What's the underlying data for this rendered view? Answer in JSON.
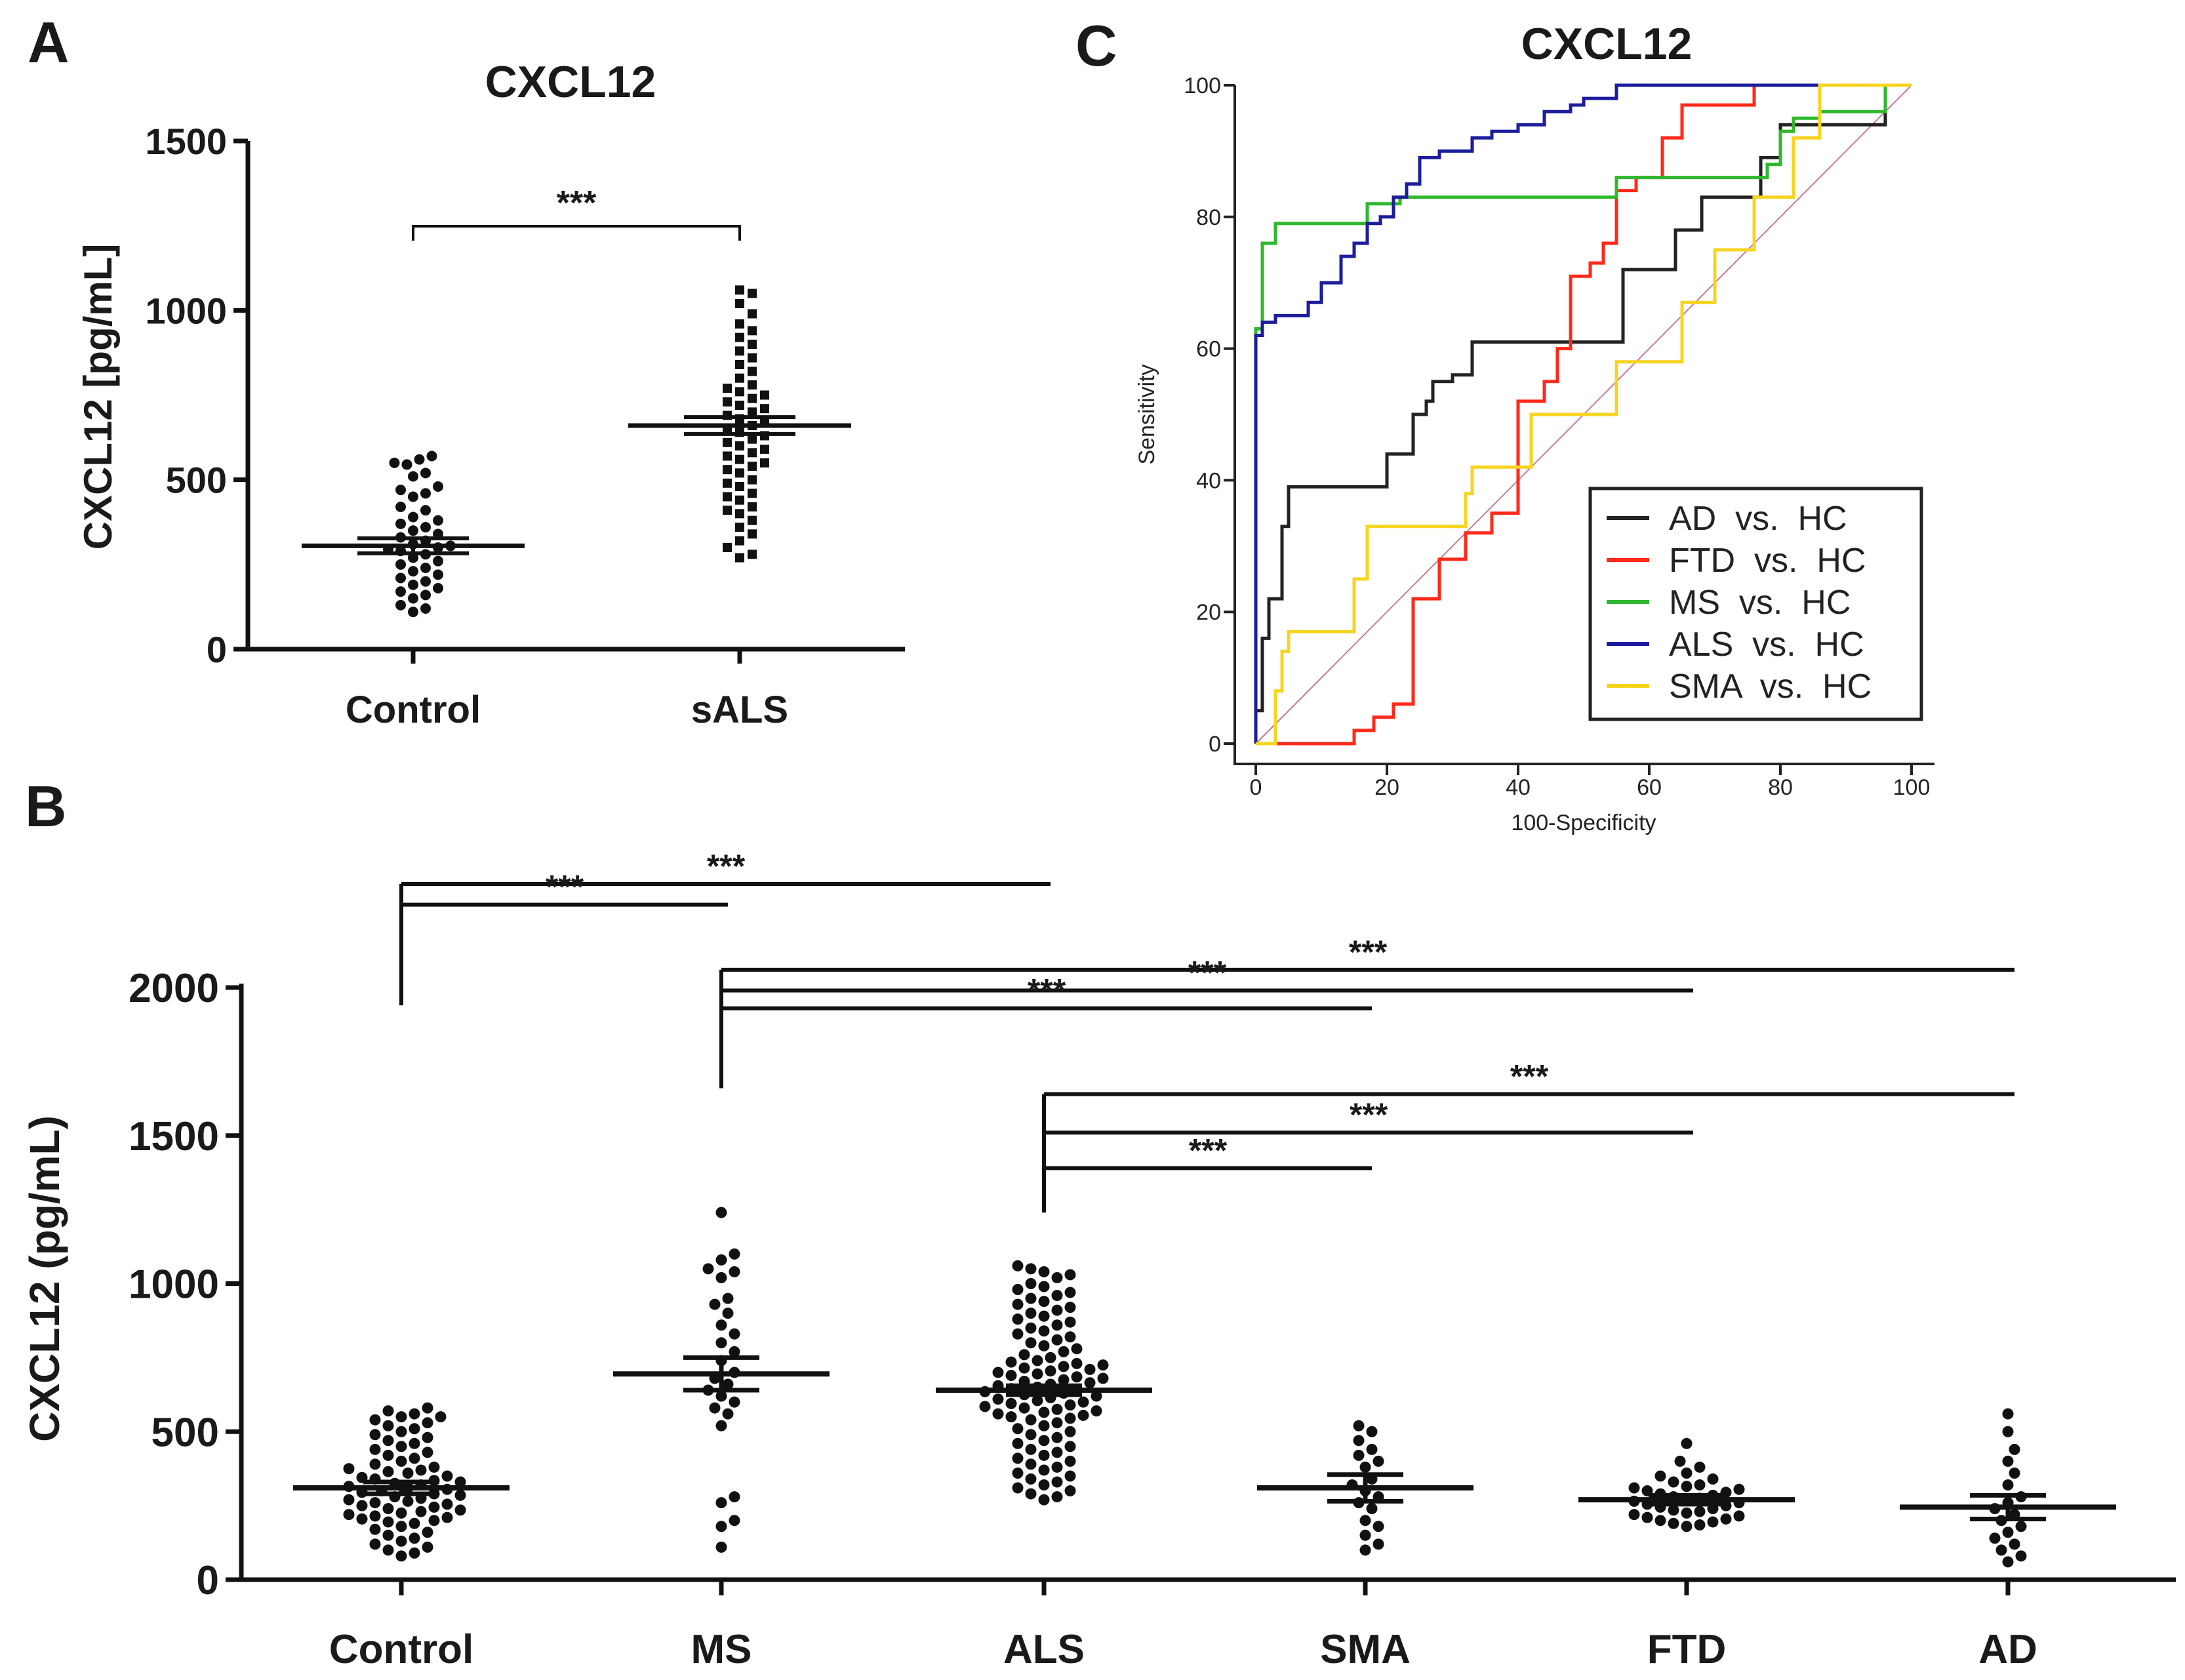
{
  "panels": {
    "A": {
      "letter": "A"
    },
    "B": {
      "letter": "B"
    },
    "C": {
      "letter": "C"
    }
  },
  "colors": {
    "ink": "#111111",
    "AD": "#222222",
    "FTD": "#ff2a1a",
    "MS": "#2eb82e",
    "ALS": "#1c1c9c",
    "SMA": "#f7d420",
    "diagonal": "#c77a9a"
  },
  "chart_data": [
    {
      "panel": "A",
      "type": "scatter",
      "title": "CXCL12",
      "xlabel": "",
      "ylabel": "CXCL12 [pg/mL]",
      "ylim": [
        0,
        1500
      ],
      "yticks": [
        "0",
        "500",
        "1000",
        "1500"
      ],
      "categories": [
        "Control",
        "sALS"
      ],
      "groups": [
        {
          "name": "Control",
          "marker": "circle",
          "mean": 305,
          "sem": 22,
          "values": [
            570,
            560,
            550,
            545,
            520,
            510,
            480,
            470,
            460,
            450,
            420,
            410,
            390,
            380,
            370,
            360,
            350,
            340,
            330,
            320,
            310,
            305,
            300,
            295,
            290,
            280,
            270,
            260,
            250,
            240,
            230,
            220,
            210,
            200,
            190,
            180,
            170,
            160,
            150,
            130,
            120,
            110
          ]
        },
        {
          "name": "sALS",
          "marker": "square",
          "mean": 660,
          "sem": 25,
          "values": [
            1060,
            1050,
            1020,
            990,
            960,
            940,
            920,
            900,
            880,
            860,
            840,
            820,
            800,
            780,
            770,
            760,
            750,
            740,
            730,
            720,
            710,
            700,
            690,
            680,
            670,
            660,
            650,
            640,
            630,
            620,
            610,
            600,
            590,
            580,
            570,
            560,
            550,
            540,
            530,
            520,
            500,
            490,
            480,
            460,
            450,
            440,
            420,
            410,
            400,
            380,
            360,
            340,
            320,
            300,
            280,
            270
          ]
        }
      ],
      "significance": [
        {
          "from": "Control",
          "to": "sALS",
          "label": "***"
        }
      ]
    },
    {
      "panel": "B",
      "type": "scatter",
      "title": "",
      "xlabel": "",
      "ylabel": "CXCL12 (pg/mL)",
      "ylim": [
        0,
        2000
      ],
      "yticks": [
        "0",
        "500",
        "1000",
        "1500",
        "2000"
      ],
      "categories": [
        "Control",
        "MS",
        "ALS",
        "SMA",
        "FTD",
        "AD"
      ],
      "groups": [
        {
          "name": "Control",
          "mean": 310,
          "sem": 20,
          "values": [
            580,
            570,
            560,
            550,
            550,
            540,
            530,
            520,
            510,
            500,
            490,
            480,
            470,
            460,
            450,
            440,
            430,
            420,
            410,
            400,
            390,
            380,
            375,
            370,
            365,
            360,
            350,
            345,
            340,
            335,
            330,
            325,
            320,
            315,
            310,
            305,
            300,
            295,
            290,
            285,
            280,
            275,
            270,
            265,
            260,
            255,
            250,
            245,
            240,
            235,
            230,
            225,
            220,
            215,
            210,
            205,
            200,
            195,
            190,
            180,
            170,
            160,
            150,
            140,
            130,
            120,
            110,
            100,
            90,
            80
          ]
        },
        {
          "name": "MS",
          "mean": 695,
          "sem": 55,
          "values": [
            1240,
            1100,
            1080,
            1050,
            1040,
            1020,
            950,
            930,
            900,
            860,
            830,
            800,
            770,
            740,
            700,
            680,
            660,
            640,
            620,
            600,
            580,
            560,
            520,
            280,
            260,
            200,
            180,
            110
          ]
        },
        {
          "name": "ALS",
          "mean": 640,
          "sem": 15,
          "values": [
            1060,
            1050,
            1040,
            1030,
            1020,
            1000,
            990,
            980,
            970,
            960,
            950,
            940,
            930,
            920,
            910,
            900,
            890,
            880,
            870,
            860,
            850,
            840,
            830,
            820,
            810,
            800,
            790,
            780,
            770,
            760,
            750,
            740,
            735,
            730,
            725,
            720,
            715,
            710,
            705,
            700,
            695,
            690,
            685,
            680,
            675,
            670,
            665,
            660,
            655,
            650,
            645,
            640,
            635,
            630,
            625,
            620,
            615,
            610,
            605,
            600,
            595,
            590,
            585,
            580,
            575,
            570,
            565,
            560,
            555,
            550,
            545,
            540,
            530,
            520,
            510,
            500,
            490,
            480,
            470,
            460,
            450,
            440,
            430,
            420,
            410,
            400,
            390,
            380,
            370,
            360,
            350,
            340,
            330,
            320,
            310,
            300,
            290,
            280,
            270
          ]
        },
        {
          "name": "SMA",
          "mean": 310,
          "sem": 45,
          "values": [
            520,
            500,
            470,
            440,
            420,
            400,
            380,
            340,
            320,
            300,
            280,
            260,
            240,
            200,
            180,
            150,
            120,
            100
          ]
        },
        {
          "name": "FTD",
          "mean": 270,
          "sem": 15,
          "values": [
            460,
            400,
            380,
            360,
            350,
            340,
            330,
            320,
            315,
            310,
            305,
            300,
            295,
            290,
            285,
            280,
            275,
            270,
            265,
            260,
            255,
            250,
            245,
            240,
            235,
            230,
            225,
            220,
            215,
            210,
            205,
            200,
            195,
            190,
            185,
            180
          ]
        },
        {
          "name": "AD",
          "mean": 245,
          "sem": 40,
          "values": [
            560,
            500,
            440,
            400,
            360,
            320,
            280,
            260,
            240,
            220,
            200,
            180,
            160,
            140,
            120,
            100,
            80,
            60
          ]
        }
      ],
      "significance": [
        {
          "from": "Control",
          "to": "ALS",
          "label": "***"
        },
        {
          "from": "Control",
          "to": "MS",
          "label": "***"
        },
        {
          "from": "MS",
          "to": "AD",
          "label": "***"
        },
        {
          "from": "MS",
          "to": "FTD",
          "label": "***"
        },
        {
          "from": "MS",
          "to": "SMA",
          "label": "***"
        },
        {
          "from": "ALS",
          "to": "AD",
          "label": "***"
        },
        {
          "from": "ALS",
          "to": "FTD",
          "label": "***"
        },
        {
          "from": "ALS",
          "to": "SMA",
          "label": "***"
        }
      ]
    },
    {
      "panel": "C",
      "type": "line",
      "title": "CXCL12",
      "xlabel": "100-Specificity",
      "ylabel": "Sensitivity",
      "xlim": [
        0,
        100
      ],
      "ylim": [
        0,
        100
      ],
      "xticks": [
        "0",
        "20",
        "40",
        "60",
        "80",
        "100"
      ],
      "yticks": [
        "0",
        "20",
        "40",
        "60",
        "80",
        "100"
      ],
      "legend": {
        "position": "bottom-right",
        "entries": [
          "AD  vs.  HC",
          "FTD  vs.  HC",
          "MS  vs.  HC",
          "ALS  vs.  HC",
          "SMA  vs.  HC"
        ]
      },
      "series": [
        {
          "name": "AD  vs.  HC",
          "color": "#222222",
          "x": [
            0,
            0,
            1,
            1,
            2,
            2,
            4,
            4,
            5,
            5,
            6,
            6,
            17,
            17,
            20,
            20,
            24,
            24,
            26,
            26,
            27,
            27,
            30,
            30,
            33,
            33,
            53,
            53,
            56,
            56,
            60,
            60,
            64,
            64,
            68,
            68,
            72,
            72,
            77,
            77,
            80,
            80,
            84,
            84,
            96,
            96,
            100
          ],
          "y": [
            0,
            5,
            5,
            16,
            16,
            22,
            22,
            33,
            33,
            39,
            39,
            39,
            39,
            39,
            39,
            44,
            44,
            50,
            50,
            52,
            52,
            55,
            55,
            56,
            56,
            61,
            61,
            61,
            61,
            72,
            72,
            72,
            72,
            78,
            78,
            83,
            83,
            83,
            83,
            89,
            89,
            94,
            94,
            94,
            94,
            100,
            100
          ]
        },
        {
          "name": "FTD  vs.  HC",
          "color": "#ff2a1a",
          "x": [
            0,
            3,
            3,
            15,
            15,
            18,
            18,
            21,
            21,
            24,
            24,
            28,
            28,
            32,
            32,
            36,
            36,
            40,
            40,
            44,
            44,
            46,
            46,
            48,
            48,
            51,
            51,
            53,
            53,
            55,
            55,
            58,
            58,
            62,
            62,
            65,
            65,
            68,
            68,
            76,
            76,
            85,
            85,
            100
          ],
          "y": [
            0,
            0,
            0,
            0,
            2,
            2,
            4,
            4,
            6,
            6,
            22,
            22,
            28,
            28,
            32,
            32,
            35,
            35,
            52,
            52,
            55,
            55,
            60,
            60,
            71,
            71,
            73,
            73,
            76,
            76,
            84,
            84,
            86,
            86,
            92,
            92,
            97,
            97,
            97,
            97,
            100,
            100,
            100,
            100
          ]
        },
        {
          "name": "MS  vs.  HC",
          "color": "#2eb82e",
          "x": [
            0,
            0,
            1,
            1,
            3,
            3,
            17,
            17,
            22,
            22,
            55,
            55,
            78,
            78,
            80,
            80,
            82,
            82,
            86,
            86,
            96,
            96,
            100
          ],
          "y": [
            0,
            63,
            63,
            76,
            76,
            79,
            79,
            82,
            82,
            83,
            83,
            86,
            86,
            88,
            88,
            93,
            93,
            95,
            95,
            96,
            96,
            100,
            100
          ]
        },
        {
          "name": "ALS  vs.  HC",
          "color": "#1c1c9c",
          "x": [
            0,
            0,
            1,
            1,
            3,
            3,
            8,
            8,
            10,
            10,
            13,
            13,
            15,
            15,
            17,
            17,
            19,
            19,
            21,
            21,
            23,
            23,
            25,
            25,
            28,
            28,
            33,
            33,
            36,
            36,
            40,
            40,
            44,
            44,
            48,
            48,
            50,
            50,
            55,
            55,
            100
          ],
          "y": [
            0,
            62,
            62,
            64,
            64,
            65,
            65,
            67,
            67,
            70,
            70,
            74,
            74,
            76,
            76,
            79,
            79,
            80,
            80,
            83,
            83,
            85,
            85,
            89,
            89,
            90,
            90,
            92,
            92,
            93,
            93,
            94,
            94,
            96,
            96,
            97,
            97,
            98,
            98,
            100,
            100
          ]
        },
        {
          "name": "SMA  vs.  HC",
          "color": "#f7d420",
          "x": [
            0,
            3,
            3,
            4,
            4,
            5,
            5,
            15,
            15,
            17,
            17,
            32,
            32,
            33,
            33,
            42,
            42,
            55,
            55,
            65,
            65,
            70,
            70,
            76,
            76,
            82,
            82,
            86,
            86,
            100
          ],
          "y": [
            0,
            0,
            8,
            8,
            14,
            14,
            17,
            17,
            25,
            25,
            33,
            33,
            38,
            38,
            42,
            42,
            50,
            50,
            58,
            58,
            67,
            67,
            75,
            75,
            83,
            83,
            92,
            92,
            100,
            100
          ]
        }
      ]
    }
  ]
}
